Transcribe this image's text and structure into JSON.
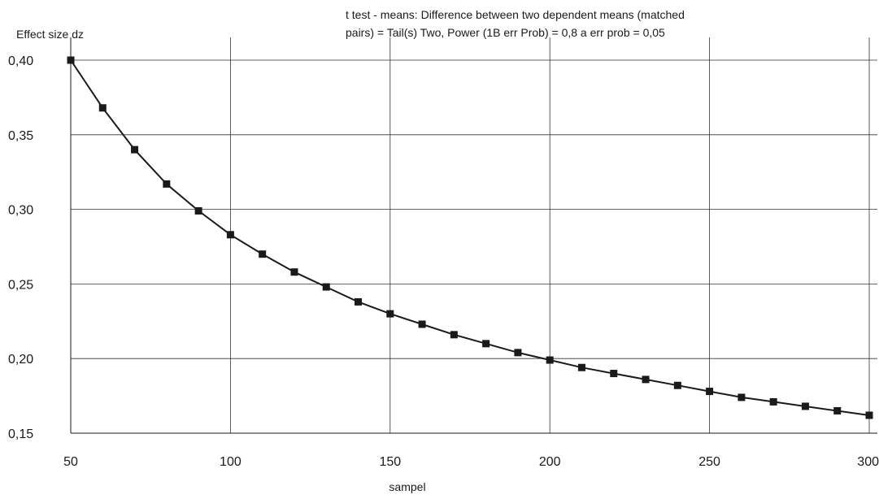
{
  "chart_data": {
    "type": "line",
    "title_lines": [
      "t test - means: Difference between two dependent means (matched",
      "pairs) = Tail(s) Two, Power (1B err Prob) = 0,8  a err prob = 0,05"
    ],
    "xlabel": "sampel",
    "ylabel": "Effect size dz",
    "xlim": [
      50,
      300
    ],
    "ylim": [
      0.15,
      0.4
    ],
    "x_ticks": [
      50,
      100,
      150,
      200,
      250,
      300
    ],
    "x_tick_labels": [
      "50",
      "100",
      "150",
      "200",
      "250",
      "300"
    ],
    "y_ticks": [
      0.15,
      0.2,
      0.25,
      0.3,
      0.35,
      0.4
    ],
    "y_tick_labels": [
      "0,15",
      "0,20",
      "0,25",
      "0,30",
      "0,35",
      "0,40"
    ],
    "grid": true,
    "line_color": "#1a1a1a",
    "marker": "square",
    "series": [
      {
        "x": [
          50,
          60,
          70,
          80,
          90,
          100,
          110,
          120,
          130,
          140,
          150,
          160,
          170,
          180,
          190,
          200,
          210,
          220,
          230,
          240,
          250,
          260,
          270,
          280,
          290,
          300
        ],
        "values": [
          0.4,
          0.368,
          0.34,
          0.317,
          0.299,
          0.283,
          0.27,
          0.258,
          0.248,
          0.238,
          0.23,
          0.223,
          0.216,
          0.21,
          0.204,
          0.199,
          0.194,
          0.19,
          0.186,
          0.182,
          0.178,
          0.174,
          0.171,
          0.168,
          0.165,
          0.162
        ]
      }
    ]
  }
}
